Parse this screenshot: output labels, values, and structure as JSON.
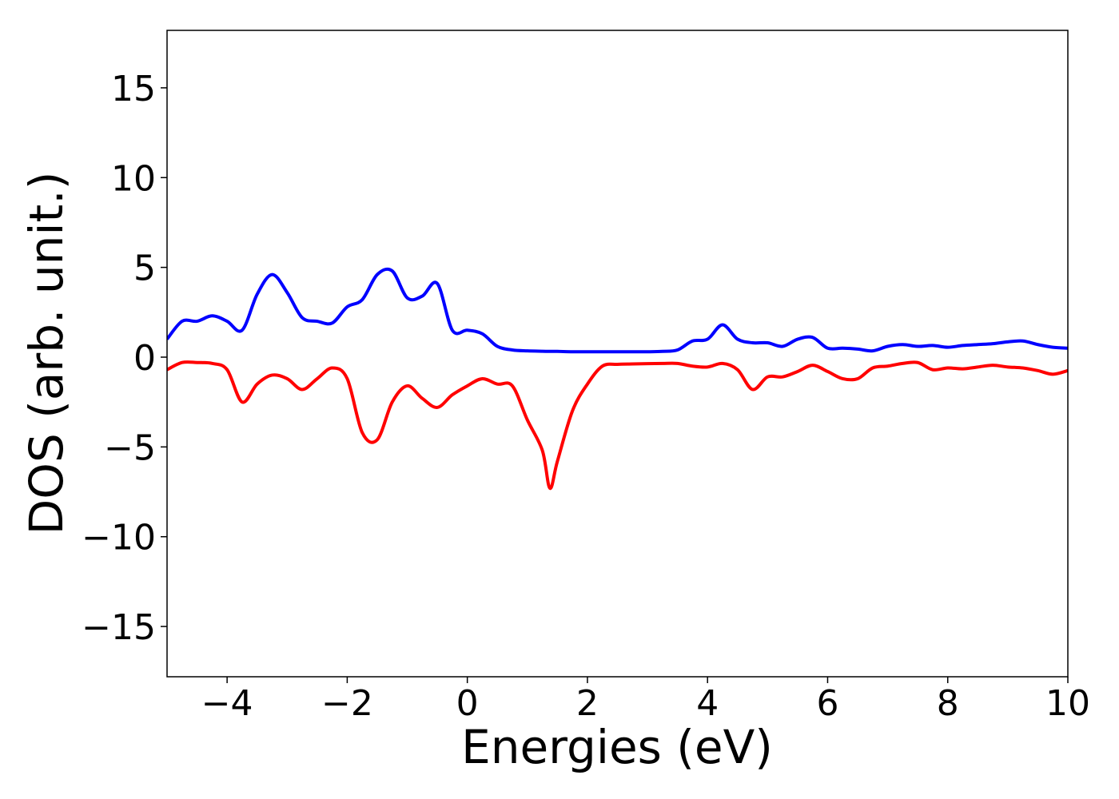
{
  "chart_data": {
    "type": "line",
    "xlabel": "Energies (eV)",
    "ylabel": "DOS (arb. unit.)",
    "x": [
      -5,
      -4.75,
      -4.5,
      -4.25,
      -4,
      -3.75,
      -3.5,
      -3.25,
      -3,
      -2.75,
      -2.5,
      -2.25,
      -2,
      -1.75,
      -1.5,
      -1.25,
      -1,
      -0.75,
      -0.5,
      -0.25,
      0,
      0.25,
      0.5,
      0.75,
      1,
      1.25,
      1.375,
      1.5,
      1.75,
      2,
      2.25,
      2.5,
      2.75,
      3,
      3.25,
      3.5,
      3.75,
      4,
      4.25,
      4.5,
      4.75,
      5,
      5.25,
      5.5,
      5.75,
      6,
      6.25,
      6.5,
      6.75,
      7,
      7.25,
      7.5,
      7.75,
      8,
      8.25,
      8.5,
      8.75,
      9,
      9.25,
      9.5,
      9.75,
      10
    ],
    "series": [
      {
        "color": "#0000ff",
        "values": [
          1.0,
          2.0,
          2.0,
          2.3,
          2.0,
          1.5,
          3.5,
          4.6,
          3.6,
          2.2,
          2.0,
          1.9,
          2.8,
          3.2,
          4.6,
          4.8,
          3.3,
          3.4,
          4.1,
          1.5,
          1.5,
          1.3,
          0.6,
          0.4,
          0.35,
          0.33,
          0.32,
          0.32,
          0.3,
          0.3,
          0.3,
          0.3,
          0.3,
          0.3,
          0.32,
          0.4,
          0.9,
          1.0,
          1.8,
          1.0,
          0.8,
          0.8,
          0.6,
          1.0,
          1.1,
          0.5,
          0.5,
          0.45,
          0.35,
          0.6,
          0.7,
          0.6,
          0.65,
          0.55,
          0.65,
          0.7,
          0.75,
          0.85,
          0.9,
          0.7,
          0.55,
          0.5
        ]
      },
      {
        "color": "#ff0000",
        "values": [
          -0.7,
          -0.3,
          -0.3,
          -0.35,
          -0.7,
          -2.5,
          -1.5,
          -1.0,
          -1.2,
          -1.8,
          -1.2,
          -0.6,
          -1.2,
          -4.2,
          -4.6,
          -2.5,
          -1.6,
          -2.3,
          -2.8,
          -2.1,
          -1.6,
          -1.2,
          -1.5,
          -1.6,
          -3.5,
          -5.2,
          -7.3,
          -5.8,
          -3.0,
          -1.5,
          -0.5,
          -0.4,
          -0.38,
          -0.36,
          -0.35,
          -0.35,
          -0.5,
          -0.55,
          -0.35,
          -0.7,
          -1.8,
          -1.1,
          -1.1,
          -0.8,
          -0.45,
          -0.8,
          -1.2,
          -1.2,
          -0.6,
          -0.5,
          -0.35,
          -0.3,
          -0.7,
          -0.6,
          -0.65,
          -0.55,
          -0.45,
          -0.55,
          -0.6,
          -0.75,
          -0.95,
          -0.75
        ]
      }
    ],
    "xlim": [
      -5,
      10
    ],
    "xticks": [
      {
        "value": -4,
        "label": "−4"
      },
      {
        "value": -2,
        "label": "−2"
      },
      0,
      2,
      4,
      6,
      8,
      10
    ],
    "ylim": [
      -17.8,
      18.2
    ],
    "yticks": [
      {
        "value": -15,
        "label": "−15"
      },
      {
        "value": -10,
        "label": "−10"
      },
      {
        "value": -5,
        "label": "−5"
      },
      0,
      5,
      10,
      15
    ],
    "grid": false
  }
}
